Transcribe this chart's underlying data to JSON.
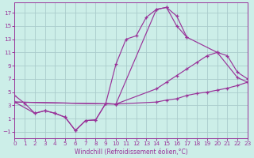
{
  "xlabel": "Windchill (Refroidissement éolien,°C)",
  "bg_color": "#cceee8",
  "grid_color": "#aacccc",
  "line_color": "#993399",
  "xlim": [
    0,
    23
  ],
  "ylim": [
    -2,
    18.5
  ],
  "xticks": [
    0,
    1,
    2,
    3,
    4,
    5,
    6,
    7,
    8,
    9,
    10,
    11,
    12,
    13,
    14,
    15,
    16,
    17,
    18,
    19,
    20,
    21,
    22,
    23
  ],
  "yticks": [
    -1,
    1,
    3,
    5,
    7,
    9,
    11,
    13,
    15,
    17
  ],
  "series": [
    {
      "x": [
        0,
        1,
        2,
        3,
        4,
        5,
        6,
        7,
        8,
        9,
        10,
        11,
        12,
        13,
        14,
        15,
        16,
        17
      ],
      "y": [
        4.5,
        3.3,
        1.8,
        2.2,
        1.8,
        1.2,
        -0.8,
        0.7,
        0.8,
        3.3,
        9.2,
        13.0,
        13.5,
        16.3,
        17.5,
        17.8,
        15.0,
        13.3
      ]
    },
    {
      "x": [
        0,
        10,
        14,
        15,
        16,
        17,
        18,
        19,
        20,
        21,
        22,
        23
      ],
      "y": [
        3.5,
        3.2,
        3.5,
        3.8,
        4.0,
        4.5,
        4.8,
        5.0,
        5.3,
        5.6,
        6.0,
        6.5
      ]
    },
    {
      "x": [
        0,
        10,
        14,
        15,
        16,
        17,
        18,
        19,
        20,
        21,
        22,
        23
      ],
      "y": [
        3.5,
        3.2,
        5.5,
        6.5,
        7.5,
        8.5,
        9.5,
        10.5,
        11.0,
        10.5,
        8.0,
        7.0
      ]
    },
    {
      "x": [
        0,
        2,
        3,
        4,
        5,
        6,
        7,
        8,
        9,
        10,
        14,
        15,
        16,
        17,
        20,
        22,
        23
      ],
      "y": [
        3.5,
        1.8,
        2.2,
        1.8,
        1.2,
        -0.8,
        0.7,
        0.8,
        3.3,
        3.2,
        17.5,
        17.8,
        16.5,
        13.3,
        11.0,
        7.2,
        6.5
      ]
    }
  ]
}
